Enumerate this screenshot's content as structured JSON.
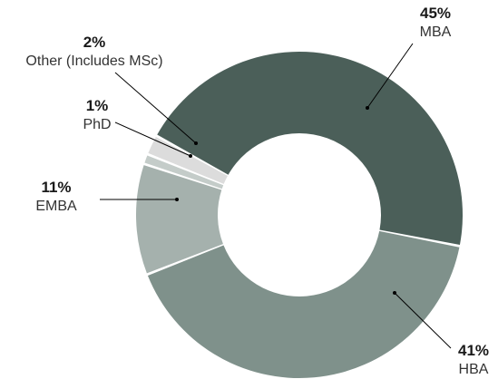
{
  "chart_data": {
    "type": "pie",
    "variant": "donut",
    "title": "",
    "slices": [
      {
        "label": "MBA",
        "percent_label": "45%",
        "value": 45,
        "color": "#4b5f59"
      },
      {
        "label": "HBA",
        "percent_label": "41%",
        "value": 41,
        "color": "#7f918b"
      },
      {
        "label": "EMBA",
        "percent_label": "11%",
        "value": 11,
        "color": "#a5b1ad"
      },
      {
        "label": "PhD",
        "percent_label": "1%",
        "value": 1,
        "color": "#c4ccc9"
      },
      {
        "label": "Other (Includes MSc)",
        "percent_label": "2%",
        "value": 2,
        "color": "#dcdcdc"
      }
    ]
  }
}
